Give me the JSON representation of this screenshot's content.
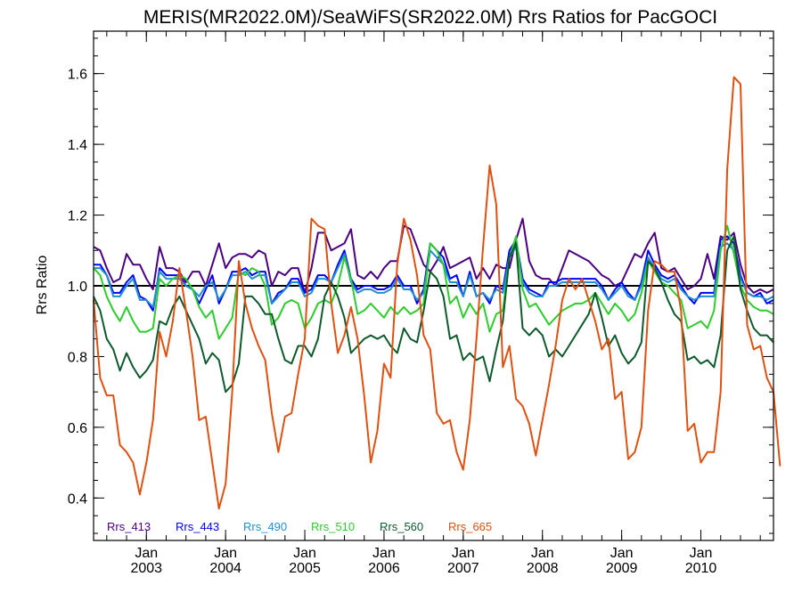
{
  "chart_data": {
    "type": "line",
    "title": "MERIS(MR2022.0M)/SeaWiFS(SR2022.0M)  Rrs Ratios for PacGOCI",
    "ylabel": "Rrs Ratio",
    "xlabel": "",
    "ylim": [
      0.28,
      1.72
    ],
    "xlim": [
      "2002-05",
      "2010-12"
    ],
    "yticks": [
      0.4,
      0.6,
      0.8,
      1.0,
      1.2,
      1.4,
      1.6
    ],
    "ytick_labels": [
      "0.4",
      "0.6",
      "0.8",
      "1.0",
      "1.2",
      "1.4",
      "1.6"
    ],
    "xticks": [
      {
        "month": "Jan",
        "year": "2003",
        "date": "2003-01"
      },
      {
        "month": "Jan",
        "year": "2004",
        "date": "2004-01"
      },
      {
        "month": "Jan",
        "year": "2005",
        "date": "2005-01"
      },
      {
        "month": "Jan",
        "year": "2006",
        "date": "2006-01"
      },
      {
        "month": "Jan",
        "year": "2007",
        "date": "2007-01"
      },
      {
        "month": "Jan",
        "year": "2008",
        "date": "2008-01"
      },
      {
        "month": "Jan",
        "year": "2009",
        "date": "2009-01"
      },
      {
        "month": "Jan",
        "year": "2010",
        "date": "2010-01"
      }
    ],
    "reference_line": 1.0,
    "legend_position": "bottom-left",
    "start_month": "2002-05",
    "series": [
      {
        "name": "Rrs_413",
        "color": "#4b0082",
        "values": [
          1.11,
          1.1,
          1.05,
          1.01,
          1.02,
          1.09,
          1.06,
          1.06,
          1.02,
          0.99,
          1.11,
          1.05,
          1.05,
          1.04,
          1.01,
          1.04,
          1.04,
          1.0,
          1.06,
          1.12,
          1.05,
          1.08,
          1.09,
          1.09,
          1.08,
          1.1,
          1.09,
          1.0,
          1.04,
          1.03,
          1.05,
          1.05,
          0.98,
          1.05,
          1.15,
          1.15,
          1.1,
          1.11,
          1.12,
          1.16,
          1.03,
          1.02,
          1.04,
          1.02,
          1.05,
          1.07,
          1.07,
          1.17,
          1.16,
          1.11,
          1.06,
          1.04,
          1.07,
          1.11,
          1.05,
          1.06,
          1.07,
          1.08,
          1.02,
          1.05,
          1.02,
          1.06,
          1.05,
          1.05,
          1.13,
          1.19,
          1.07,
          1.03,
          1.02,
          1.02,
          1.0,
          1.05,
          1.1,
          1.09,
          1.08,
          1.07,
          1.05,
          1.03,
          1.02,
          1.0,
          1.01,
          1.05,
          1.09,
          1.08,
          1.12,
          1.15,
          1.05,
          1.04,
          1.05,
          1.02,
          0.99,
          1.0,
          1.02,
          1.09,
          1.02,
          1.14,
          1.13,
          1.15,
          1.06,
          1.0,
          0.98,
          0.99,
          0.98,
          0.99
        ]
      },
      {
        "name": "Rrs_443",
        "color": "#0000ff",
        "values": [
          1.06,
          1.06,
          1.03,
          0.98,
          0.98,
          1.01,
          1.03,
          0.97,
          0.96,
          0.93,
          1.05,
          1.03,
          1.03,
          1.03,
          1.0,
          0.99,
          0.95,
          0.99,
          1.03,
          0.95,
          0.99,
          1.04,
          1.04,
          1.05,
          1.03,
          1.04,
          1.04,
          0.95,
          0.98,
          0.99,
          1.02,
          1.02,
          0.98,
          0.99,
          1.03,
          1.03,
          1.01,
          1.06,
          1.1,
          1.02,
          0.99,
          1.0,
          1.0,
          0.99,
          0.99,
          1.0,
          1.03,
          1.0,
          1.0,
          0.95,
          0.99,
          1.12,
          1.1,
          1.08,
          1.02,
          1.03,
          0.97,
          1.04,
          0.97,
          0.98,
          0.95,
          1.0,
          0.99,
          1.1,
          1.13,
          1.02,
          0.99,
          0.98,
          0.97,
          1.01,
          1.01,
          1.02,
          1.02,
          1.02,
          1.02,
          1.02,
          1.02,
          1.0,
          0.96,
          0.99,
          1.01,
          0.98,
          0.96,
          1.01,
          1.1,
          1.06,
          1.03,
          1.02,
          1.03,
          1.0,
          0.97,
          0.95,
          0.98,
          0.98,
          0.98,
          1.13,
          1.14,
          1.12,
          1.03,
          0.98,
          0.97,
          0.98,
          0.95,
          0.96
        ]
      },
      {
        "name": "Rrs_490",
        "color": "#1e8fd0",
        "values": [
          1.05,
          1.05,
          1.03,
          0.97,
          0.97,
          1.0,
          1.02,
          0.96,
          0.96,
          0.94,
          1.04,
          1.02,
          1.02,
          1.02,
          1.0,
          0.99,
          0.97,
          1.0,
          1.01,
          0.96,
          0.99,
          1.03,
          1.03,
          1.04,
          1.02,
          1.03,
          1.03,
          0.95,
          0.97,
          0.99,
          1.01,
          1.01,
          0.97,
          0.98,
          1.02,
          1.02,
          1.01,
          1.05,
          1.09,
          1.01,
          0.98,
          0.99,
          0.99,
          0.98,
          0.98,
          0.99,
          1.02,
          0.99,
          0.99,
          0.96,
          0.98,
          1.1,
          1.08,
          1.06,
          1.01,
          1.01,
          0.97,
          1.03,
          0.97,
          0.98,
          0.96,
          0.99,
          0.98,
          1.08,
          1.11,
          1.01,
          0.98,
          0.97,
          0.97,
          1.0,
          1.0,
          1.01,
          1.01,
          1.01,
          1.01,
          1.01,
          1.01,
          0.99,
          0.96,
          0.98,
          1.0,
          0.97,
          0.96,
          1.0,
          1.08,
          1.05,
          1.02,
          1.01,
          1.02,
          0.99,
          0.97,
          0.96,
          0.97,
          0.97,
          0.97,
          1.11,
          1.12,
          1.1,
          1.02,
          0.98,
          0.97,
          0.97,
          0.96,
          0.97
        ]
      },
      {
        "name": "Rrs_510",
        "color": "#2ecc2e",
        "values": [
          1.05,
          1.03,
          0.97,
          0.93,
          0.9,
          0.94,
          0.9,
          0.87,
          0.87,
          0.88,
          1.02,
          1.0,
          1.02,
          1.03,
          1.02,
          0.99,
          0.94,
          0.91,
          0.93,
          0.85,
          0.88,
          0.91,
          1.04,
          1.03,
          1.05,
          1.04,
          1.0,
          0.89,
          0.91,
          0.95,
          0.96,
          0.95,
          0.88,
          0.91,
          0.95,
          0.96,
          0.95,
          1.0,
          1.08,
          1.02,
          0.92,
          0.93,
          0.95,
          0.93,
          0.91,
          0.94,
          0.92,
          0.94,
          0.92,
          0.93,
          0.95,
          1.12,
          1.1,
          1.06,
          0.95,
          0.97,
          0.91,
          0.95,
          0.92,
          0.95,
          0.87,
          0.92,
          0.93,
          1.08,
          1.14,
          0.99,
          0.94,
          0.95,
          0.92,
          0.89,
          0.91,
          0.93,
          0.94,
          0.95,
          0.95,
          0.96,
          0.98,
          0.95,
          0.92,
          0.95,
          0.93,
          0.9,
          0.92,
          0.98,
          1.07,
          1.04,
          1.01,
          1.0,
          0.98,
          0.96,
          0.88,
          0.89,
          0.9,
          0.88,
          0.93,
          1.1,
          1.17,
          1.09,
          1.0,
          0.96,
          0.94,
          0.93,
          0.93,
          0.92
        ]
      },
      {
        "name": "Rrs_560",
        "color": "#0d5a2c",
        "values": [
          0.97,
          0.93,
          0.85,
          0.82,
          0.76,
          0.81,
          0.77,
          0.74,
          0.76,
          0.79,
          0.9,
          0.89,
          0.94,
          0.97,
          0.93,
          0.89,
          0.85,
          0.78,
          0.81,
          0.79,
          0.7,
          0.72,
          0.78,
          0.97,
          0.97,
          0.95,
          0.92,
          0.92,
          0.85,
          0.79,
          0.78,
          0.83,
          0.83,
          0.8,
          0.85,
          0.97,
          1.01,
          0.97,
          0.91,
          0.81,
          0.83,
          0.85,
          0.86,
          0.85,
          0.86,
          0.83,
          0.81,
          0.88,
          0.85,
          0.84,
          0.93,
          1.04,
          1.02,
          0.97,
          0.85,
          0.86,
          0.79,
          0.81,
          0.79,
          0.8,
          0.73,
          0.82,
          0.9,
          1.08,
          1.12,
          0.88,
          0.86,
          0.88,
          0.86,
          0.8,
          0.82,
          0.8,
          0.83,
          0.86,
          0.89,
          0.92,
          0.98,
          0.91,
          0.83,
          0.86,
          0.81,
          0.78,
          0.8,
          0.84,
          1.07,
          1.05,
          1.01,
          0.96,
          0.92,
          0.9,
          0.79,
          0.8,
          0.78,
          0.79,
          0.77,
          0.86,
          1.1,
          1.14,
          0.99,
          0.93,
          0.88,
          0.86,
          0.86,
          0.84
        ]
      },
      {
        "name": "Rrs_665",
        "color": "#e05010",
        "values": [
          0.96,
          0.74,
          0.69,
          0.69,
          0.55,
          0.53,
          0.5,
          0.41,
          0.5,
          0.62,
          0.87,
          0.8,
          0.9,
          1.05,
          0.93,
          0.8,
          0.62,
          0.63,
          0.5,
          0.37,
          0.44,
          0.7,
          1.07,
          0.95,
          0.88,
          0.83,
          0.79,
          0.64,
          0.53,
          0.63,
          0.64,
          0.75,
          0.85,
          1.19,
          1.17,
          1.16,
          0.95,
          0.81,
          0.86,
          0.94,
          0.85,
          0.69,
          0.5,
          0.59,
          0.78,
          0.74,
          1.06,
          1.19,
          1.13,
          1.03,
          0.86,
          0.82,
          0.64,
          0.61,
          0.62,
          0.53,
          0.48,
          0.62,
          0.85,
          1.11,
          1.34,
          1.23,
          0.77,
          0.83,
          0.68,
          0.66,
          0.61,
          0.52,
          0.62,
          0.72,
          0.83,
          0.96,
          1.02,
          0.99,
          1.02,
          0.96,
          0.9,
          0.82,
          0.85,
          0.68,
          0.7,
          0.51,
          0.53,
          0.6,
          0.93,
          1.07,
          1.06,
          1.04,
          1.04,
          0.93,
          0.59,
          0.61,
          0.5,
          0.53,
          0.53,
          0.7,
          1.33,
          1.59,
          1.57,
          0.89,
          0.82,
          0.83,
          0.74,
          0.7,
          0.49
        ]
      }
    ]
  }
}
